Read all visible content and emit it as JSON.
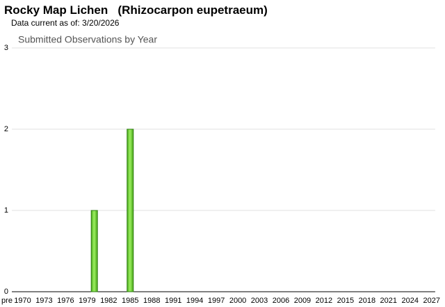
{
  "header": {
    "title": "Rocky Map Lichen   (Rhizocarpon eupetraeum)",
    "subtitle": "Data current as of: 3/20/2026"
  },
  "chart_data": {
    "type": "bar",
    "title": "Submitted Observations by Year",
    "categories": [
      "pre",
      "1970",
      null,
      null,
      "1973",
      null,
      null,
      "1976",
      null,
      null,
      "1979",
      null,
      null,
      "1982",
      null,
      null,
      "1985",
      null,
      null,
      "1988",
      null,
      null,
      "1991",
      null,
      null,
      "1994",
      null,
      null,
      "1997",
      null,
      null,
      "2000",
      null,
      null,
      "2003",
      null,
      null,
      "2006",
      null,
      null,
      "2009",
      null,
      null,
      "2012",
      null,
      null,
      "2015",
      null,
      null,
      "2018",
      null,
      null,
      "2021",
      null,
      null,
      "2024",
      null,
      null,
      "2027"
    ],
    "values": [
      0,
      0,
      0,
      0,
      0,
      0,
      0,
      0,
      0,
      0,
      0,
      1,
      0,
      0,
      0,
      0,
      2,
      0,
      0,
      0,
      0,
      0,
      0,
      0,
      0,
      0,
      0,
      0,
      0,
      0,
      0,
      0,
      0,
      0,
      0,
      0,
      0,
      0,
      0,
      0,
      0,
      0,
      0,
      0,
      0,
      0,
      0,
      0,
      0,
      0,
      0,
      0,
      0,
      0,
      0,
      0,
      0,
      0,
      0
    ],
    "color": "#7ad83a",
    "ylim": [
      0,
      3
    ],
    "yticks": [
      0,
      1,
      2,
      3
    ],
    "grid": true
  }
}
